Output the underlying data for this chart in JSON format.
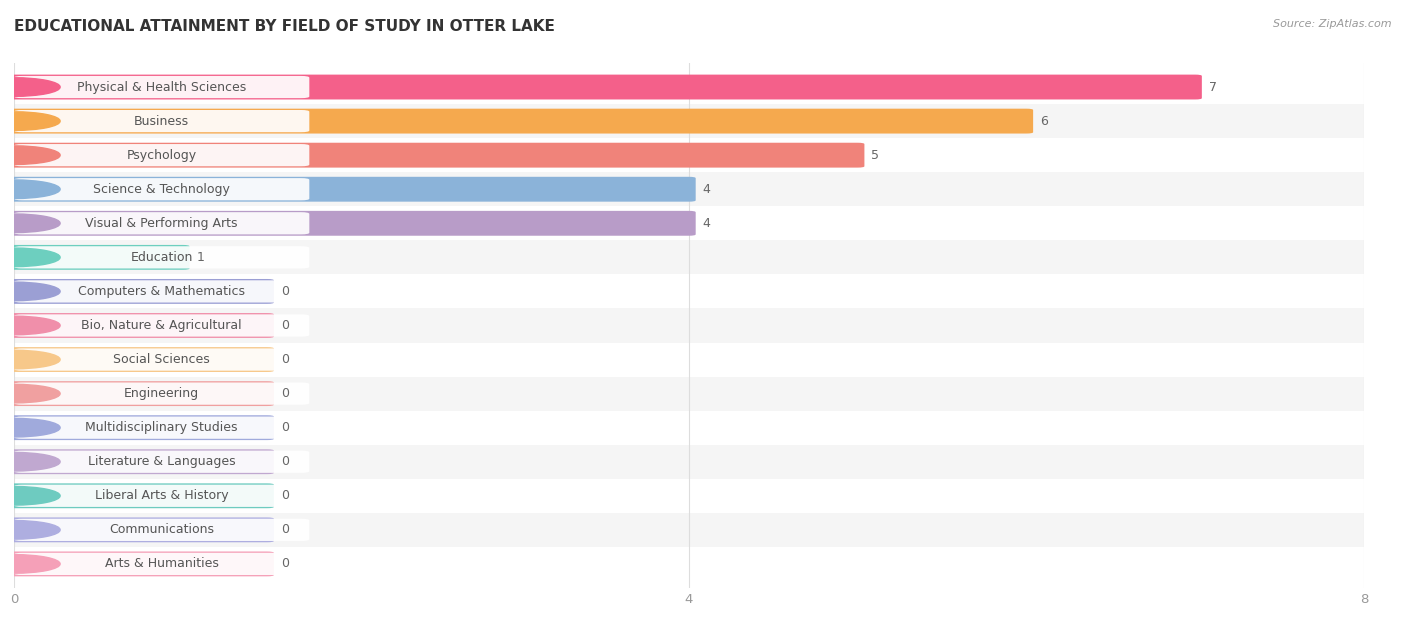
{
  "title": "EDUCATIONAL ATTAINMENT BY FIELD OF STUDY IN OTTER LAKE",
  "source": "Source: ZipAtlas.com",
  "categories": [
    "Physical & Health Sciences",
    "Business",
    "Psychology",
    "Science & Technology",
    "Visual & Performing Arts",
    "Education",
    "Computers & Mathematics",
    "Bio, Nature & Agricultural",
    "Social Sciences",
    "Engineering",
    "Multidisciplinary Studies",
    "Literature & Languages",
    "Liberal Arts & History",
    "Communications",
    "Arts & Humanities"
  ],
  "values": [
    7,
    6,
    5,
    4,
    4,
    1,
    0,
    0,
    0,
    0,
    0,
    0,
    0,
    0,
    0
  ],
  "bar_colors": [
    "#F4608A",
    "#F5A94E",
    "#F0837A",
    "#8BB3D9",
    "#B89CC8",
    "#6DCFBF",
    "#9B9FD4",
    "#F08FAA",
    "#F7C88A",
    "#F0A0A0",
    "#A0AADC",
    "#C0A8D0",
    "#6ECBC0",
    "#AEAEE0",
    "#F5A0B8"
  ],
  "xlim": [
    0,
    8
  ],
  "xticks": [
    0,
    4,
    8
  ],
  "background_color": "#ffffff",
  "row_colors": [
    "#ffffff",
    "#f5f5f5"
  ],
  "title_fontsize": 11,
  "label_fontsize": 9,
  "value_fontsize": 9
}
